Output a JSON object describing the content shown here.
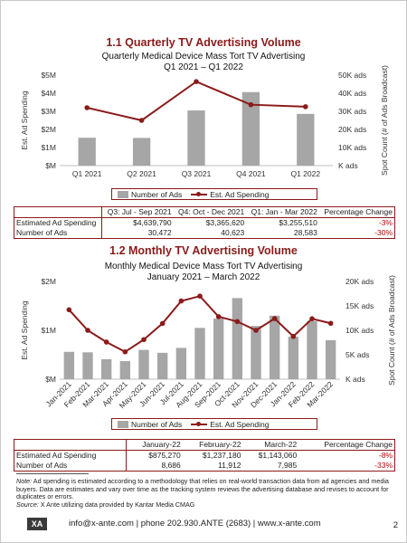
{
  "section1": {
    "title": "1.1  Quarterly TV Advertising Volume",
    "chart_title_line1": "Quarterly Medical Device Mass Tort TV Advertising",
    "chart_title_line2": "Q1 2021 – Q1 2022"
  },
  "section2": {
    "title": "1.2  Monthly TV Advertising Volume",
    "chart_title_line1": "Monthly Medical Device Mass Tort TV Advertising",
    "chart_title_line2": "January 2021 – March 2022"
  },
  "chart_data": [
    {
      "type": "bar+line",
      "categories": [
        "Q1 2021",
        "Q2 2021",
        "Q3 2021",
        "Q4 2021",
        "Q1 2022"
      ],
      "series": [
        {
          "name": "Number of Ads",
          "type": "bar",
          "axis": "right",
          "values": [
            15400,
            15300,
            30472,
            40623,
            28583
          ],
          "color": "#a6a6a6"
        },
        {
          "name": "Est. Ad Spending",
          "type": "line",
          "axis": "left",
          "values": [
            3200000,
            2500000,
            4639790,
            3365620,
            3255510
          ],
          "color": "#8b1a1a"
        }
      ],
      "ylabel_left": "Est. Ad Spending",
      "ylabel_right": "Spot Count (# of Ads Broadcast)",
      "y_left_ticks": [
        "$M",
        "$1M",
        "$2M",
        "$3M",
        "$4M",
        "$5M"
      ],
      "y_right_ticks": [
        "K ads",
        "10K ads",
        "20K ads",
        "30K ads",
        "40K ads",
        "50K ads"
      ],
      "ylim_left": [
        0,
        5000000
      ],
      "ylim_right": [
        0,
        50000
      ],
      "legend": "bottom"
    },
    {
      "type": "bar+line",
      "categories": [
        "Jan-2021",
        "Feb-2021",
        "Mar-2021",
        "Apr-2021",
        "May-2021",
        "Jun-2021",
        "Jul-2021",
        "Aug-2021",
        "Sep-2021",
        "Oct-2021",
        "Nov-2021",
        "Dec-2021",
        "Jan-2022",
        "Feb-2022",
        "Mar-2022"
      ],
      "series": [
        {
          "name": "Number of Ads",
          "type": "bar",
          "axis": "right",
          "values": [
            5600,
            5500,
            4100,
            3700,
            6000,
            5400,
            6400,
            10500,
            12400,
            16600,
            10900,
            13000,
            8686,
            11912,
            7985
          ],
          "color": "#a6a6a6"
        },
        {
          "name": "Est. Ad Spending",
          "type": "line",
          "axis": "left",
          "values": [
            1420000,
            1000000,
            760000,
            560000,
            810000,
            1140000,
            1600000,
            1700000,
            1280000,
            1180000,
            1000000,
            1240000,
            875270,
            1237180,
            1143060
          ],
          "color": "#8b1a1a"
        }
      ],
      "ylabel_left": "Est. Ad Spending",
      "ylabel_right": "Spot Count (# of Ads Broadcast)",
      "y_left_ticks": [
        "$M",
        "$1M",
        "$2M"
      ],
      "y_right_ticks": [
        "K ads",
        "5K ads",
        "10K ads",
        "15K ads",
        "20K ads"
      ],
      "ylim_left": [
        0,
        2000000
      ],
      "ylim_right": [
        0,
        20000
      ],
      "legend": "bottom"
    }
  ],
  "table1": {
    "headers": [
      "",
      "Q3: Jul - Sep 2021",
      "Q4: Oct - Dec 2021",
      "Q1: Jan - Mar 2022",
      "Percentage Change"
    ],
    "rows": [
      [
        "Estimated Ad Spending",
        "$4,639,790",
        "$3,365,620",
        "$3,255,510",
        "-3%"
      ],
      [
        "Number of Ads",
        "30,472",
        "40,623",
        "28,583",
        "-30%"
      ]
    ]
  },
  "table2": {
    "headers": [
      "",
      "January-22",
      "February-22",
      "March-22",
      "Percentage Change"
    ],
    "rows": [
      [
        "Estimated Ad Spending",
        "$875,270",
        "$1,237,180",
        "$1,143,060",
        "-8%"
      ],
      [
        "Number of Ads",
        "8,686",
        "11,912",
        "7,985",
        "-33%"
      ]
    ]
  },
  "notes": {
    "note_label": "Note:",
    "note_text": " Ad spending is estimated according to a methodology that relies on real-world transaction data from ad agencies and media buyers. Data are estimates and vary over time as the tracking system reviews the advertising database and revises to account for duplicates or errors.",
    "source_label": "Source:",
    "source_text": " X Ante utilizing data provided by Kantar Media CMAG"
  },
  "footer": {
    "logo": "XA",
    "text": "info@x-ante.com | phone 202.930.ANTE (2683) | www.x-ante.com",
    "page_number": "2"
  },
  "colors": {
    "accent": "#8b1a1a",
    "bar": "#a6a6a6",
    "negative": "#c00000"
  }
}
